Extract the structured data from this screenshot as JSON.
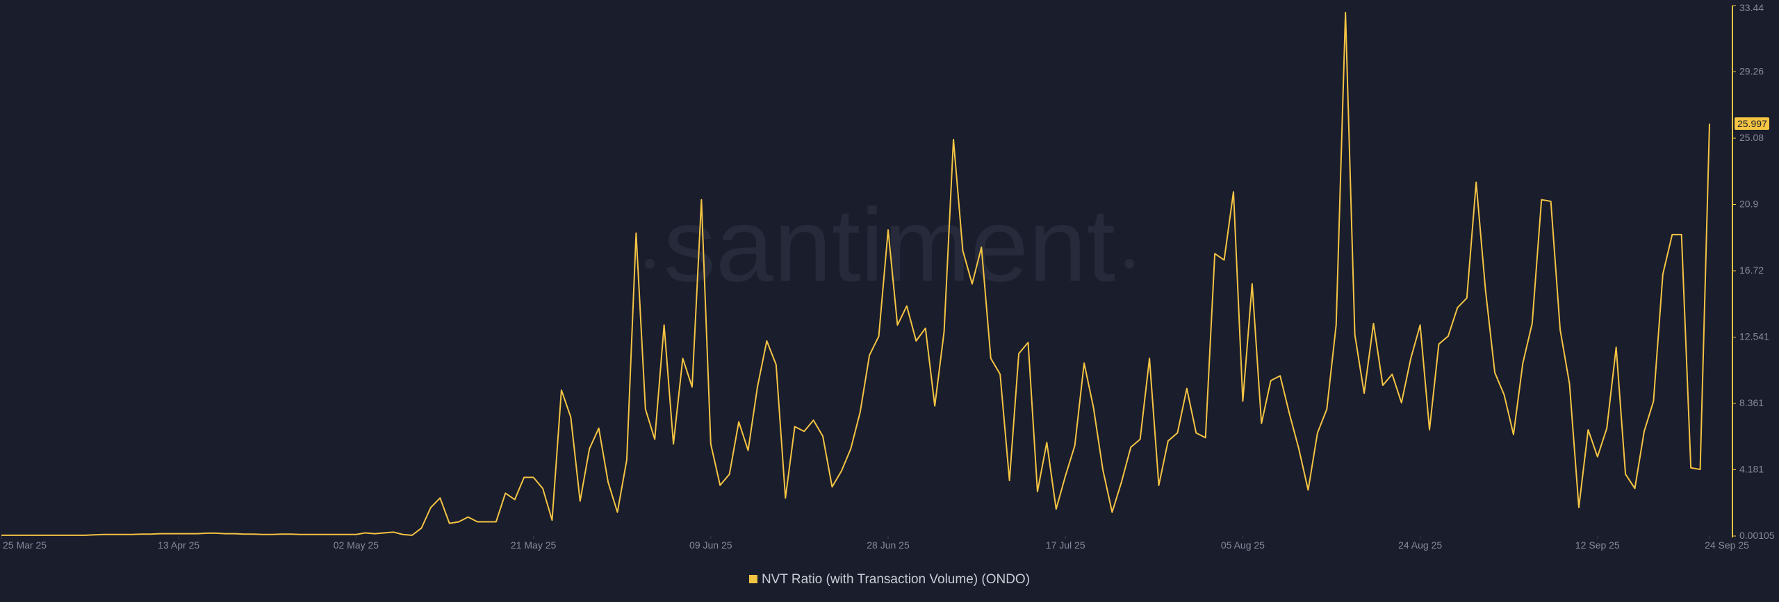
{
  "watermark": "santiment",
  "chart_data": {
    "type": "line",
    "x": [
      "2025-03-25",
      "2025-03-26",
      "2025-03-27",
      "2025-03-28",
      "2025-03-29",
      "2025-03-30",
      "2025-03-31",
      "2025-04-01",
      "2025-04-02",
      "2025-04-03",
      "2025-04-04",
      "2025-04-05",
      "2025-04-06",
      "2025-04-07",
      "2025-04-08",
      "2025-04-09",
      "2025-04-10",
      "2025-04-11",
      "2025-04-12",
      "2025-04-13",
      "2025-04-14",
      "2025-04-15",
      "2025-04-16",
      "2025-04-17",
      "2025-04-18",
      "2025-04-19",
      "2025-04-20",
      "2025-04-21",
      "2025-04-22",
      "2025-04-23",
      "2025-04-24",
      "2025-04-25",
      "2025-04-26",
      "2025-04-27",
      "2025-04-28",
      "2025-04-29",
      "2025-04-30",
      "2025-05-01",
      "2025-05-02",
      "2025-05-03",
      "2025-05-04",
      "2025-05-05",
      "2025-05-06",
      "2025-05-07",
      "2025-05-08",
      "2025-05-09",
      "2025-05-10",
      "2025-05-11",
      "2025-05-12",
      "2025-05-13",
      "2025-05-14",
      "2025-05-15",
      "2025-05-16",
      "2025-05-17",
      "2025-05-18",
      "2025-05-19",
      "2025-05-20",
      "2025-05-21",
      "2025-05-22",
      "2025-05-23",
      "2025-05-24",
      "2025-05-25",
      "2025-05-26",
      "2025-05-27",
      "2025-05-28",
      "2025-05-29",
      "2025-05-30",
      "2025-05-31",
      "2025-06-01",
      "2025-06-02",
      "2025-06-03",
      "2025-06-04",
      "2025-06-05",
      "2025-06-06",
      "2025-06-07",
      "2025-06-08",
      "2025-06-09",
      "2025-06-10",
      "2025-06-11",
      "2025-06-12",
      "2025-06-13",
      "2025-06-14",
      "2025-06-15",
      "2025-06-16",
      "2025-06-17",
      "2025-06-18",
      "2025-06-19",
      "2025-06-20",
      "2025-06-21",
      "2025-06-22",
      "2025-06-23",
      "2025-06-24",
      "2025-06-25",
      "2025-06-26",
      "2025-06-27",
      "2025-06-28",
      "2025-06-29",
      "2025-06-30",
      "2025-07-01",
      "2025-07-02",
      "2025-07-03",
      "2025-07-04",
      "2025-07-05",
      "2025-07-06",
      "2025-07-07",
      "2025-07-08",
      "2025-07-09",
      "2025-07-10",
      "2025-07-11",
      "2025-07-12",
      "2025-07-13",
      "2025-07-14",
      "2025-07-15",
      "2025-07-16",
      "2025-07-17",
      "2025-07-18",
      "2025-07-19",
      "2025-07-20",
      "2025-07-21",
      "2025-07-22",
      "2025-07-23",
      "2025-07-24",
      "2025-07-25",
      "2025-07-26",
      "2025-07-27",
      "2025-07-28",
      "2025-07-29",
      "2025-07-30",
      "2025-07-31",
      "2025-08-01",
      "2025-08-02",
      "2025-08-03",
      "2025-08-04",
      "2025-08-05",
      "2025-08-06",
      "2025-08-07",
      "2025-08-08",
      "2025-08-09",
      "2025-08-10",
      "2025-08-11",
      "2025-08-12",
      "2025-08-13",
      "2025-08-14",
      "2025-08-15",
      "2025-08-16",
      "2025-08-17",
      "2025-08-18",
      "2025-08-19",
      "2025-08-20",
      "2025-08-21",
      "2025-08-22",
      "2025-08-23",
      "2025-08-24",
      "2025-08-25",
      "2025-08-26",
      "2025-08-27",
      "2025-08-28",
      "2025-08-29",
      "2025-08-30",
      "2025-08-31",
      "2025-09-01",
      "2025-09-02",
      "2025-09-03",
      "2025-09-04",
      "2025-09-05",
      "2025-09-06",
      "2025-09-07",
      "2025-09-08",
      "2025-09-09",
      "2025-09-10",
      "2025-09-11",
      "2025-09-12",
      "2025-09-13",
      "2025-09-14",
      "2025-09-15",
      "2025-09-16",
      "2025-09-17",
      "2025-09-18",
      "2025-09-19",
      "2025-09-20",
      "2025-09-21",
      "2025-09-22",
      "2025-09-23",
      "2025-09-24"
    ],
    "series": [
      {
        "name": "NVT Ratio (with Transaction Volume) (ONDO)",
        "color": "#f4c443",
        "values": [
          0.05,
          0.05,
          0.05,
          0.05,
          0.05,
          0.05,
          0.05,
          0.05,
          0.05,
          0.05,
          0.08,
          0.1,
          0.1,
          0.1,
          0.1,
          0.12,
          0.12,
          0.15,
          0.15,
          0.15,
          0.15,
          0.15,
          0.18,
          0.18,
          0.15,
          0.15,
          0.12,
          0.12,
          0.1,
          0.1,
          0.12,
          0.12,
          0.1,
          0.1,
          0.1,
          0.1,
          0.1,
          0.1,
          0.1,
          0.2,
          0.15,
          0.2,
          0.25,
          0.1,
          0.05,
          0.5,
          1.8,
          2.4,
          0.8,
          0.9,
          1.2,
          0.9,
          0.9,
          0.9,
          2.7,
          2.3,
          3.7,
          3.7,
          3.0,
          1.0,
          9.2,
          7.5,
          2.2,
          5.5,
          6.8,
          3.4,
          1.5,
          4.8,
          19.1,
          8.0,
          6.1,
          13.3,
          5.8,
          11.2,
          9.4,
          21.2,
          5.8,
          3.2,
          3.9,
          7.2,
          5.4,
          9.4,
          12.3,
          10.8,
          2.4,
          6.9,
          6.6,
          7.3,
          6.3,
          3.1,
          4.1,
          5.5,
          7.8,
          11.4,
          12.6,
          19.3,
          13.3,
          14.5,
          12.3,
          13.1,
          8.2,
          12.9,
          25.0,
          18.0,
          15.9,
          18.2,
          11.2,
          10.2,
          3.5,
          11.5,
          12.2,
          2.8,
          5.9,
          1.7,
          3.8,
          5.7,
          10.9,
          8.1,
          4.2,
          1.5,
          3.4,
          5.6,
          6.1,
          11.2,
          3.2,
          6.0,
          6.5,
          9.3,
          6.5,
          6.2,
          17.8,
          17.4,
          21.7,
          8.5,
          15.9,
          7.1,
          9.8,
          10.1,
          7.7,
          5.5,
          2.9,
          6.5,
          8.0,
          13.3,
          33.0,
          12.7,
          9.0,
          13.4,
          9.5,
          10.2,
          8.4,
          11.2,
          13.3,
          6.7,
          12.1,
          12.6,
          14.4,
          15.0,
          22.3,
          15.5,
          10.3,
          8.9,
          6.4,
          10.9,
          13.4,
          21.2,
          21.1,
          13.0,
          9.6,
          1.8,
          6.7,
          5.0,
          6.8,
          11.9,
          3.9,
          3.0,
          6.6,
          8.5,
          16.5,
          19.0,
          19.0,
          4.3,
          4.2,
          25.997
        ]
      }
    ],
    "xticks": [
      {
        "value": "2025-03-25",
        "label": "25 Mar 25"
      },
      {
        "value": "2025-04-13",
        "label": "13 Apr 25"
      },
      {
        "value": "2025-05-02",
        "label": "02 May 25"
      },
      {
        "value": "2025-05-21",
        "label": "21 May 25"
      },
      {
        "value": "2025-06-09",
        "label": "09 Jun 25"
      },
      {
        "value": "2025-06-28",
        "label": "28 Jun 25"
      },
      {
        "value": "2025-07-17",
        "label": "17 Jul 25"
      },
      {
        "value": "2025-08-05",
        "label": "05 Aug 25"
      },
      {
        "value": "2025-08-24",
        "label": "24 Aug 25"
      },
      {
        "value": "2025-09-12",
        "label": "12 Sep 25"
      },
      {
        "value": "2025-09-24",
        "label": "24 Sep 25"
      }
    ],
    "ylim": [
      0.00105,
      33.44
    ],
    "yticks": [
      0.00105,
      4.181,
      8.361,
      12.541,
      16.72,
      20.9,
      25.08,
      29.26,
      33.44
    ],
    "grid": false,
    "legend": "bottom"
  }
}
